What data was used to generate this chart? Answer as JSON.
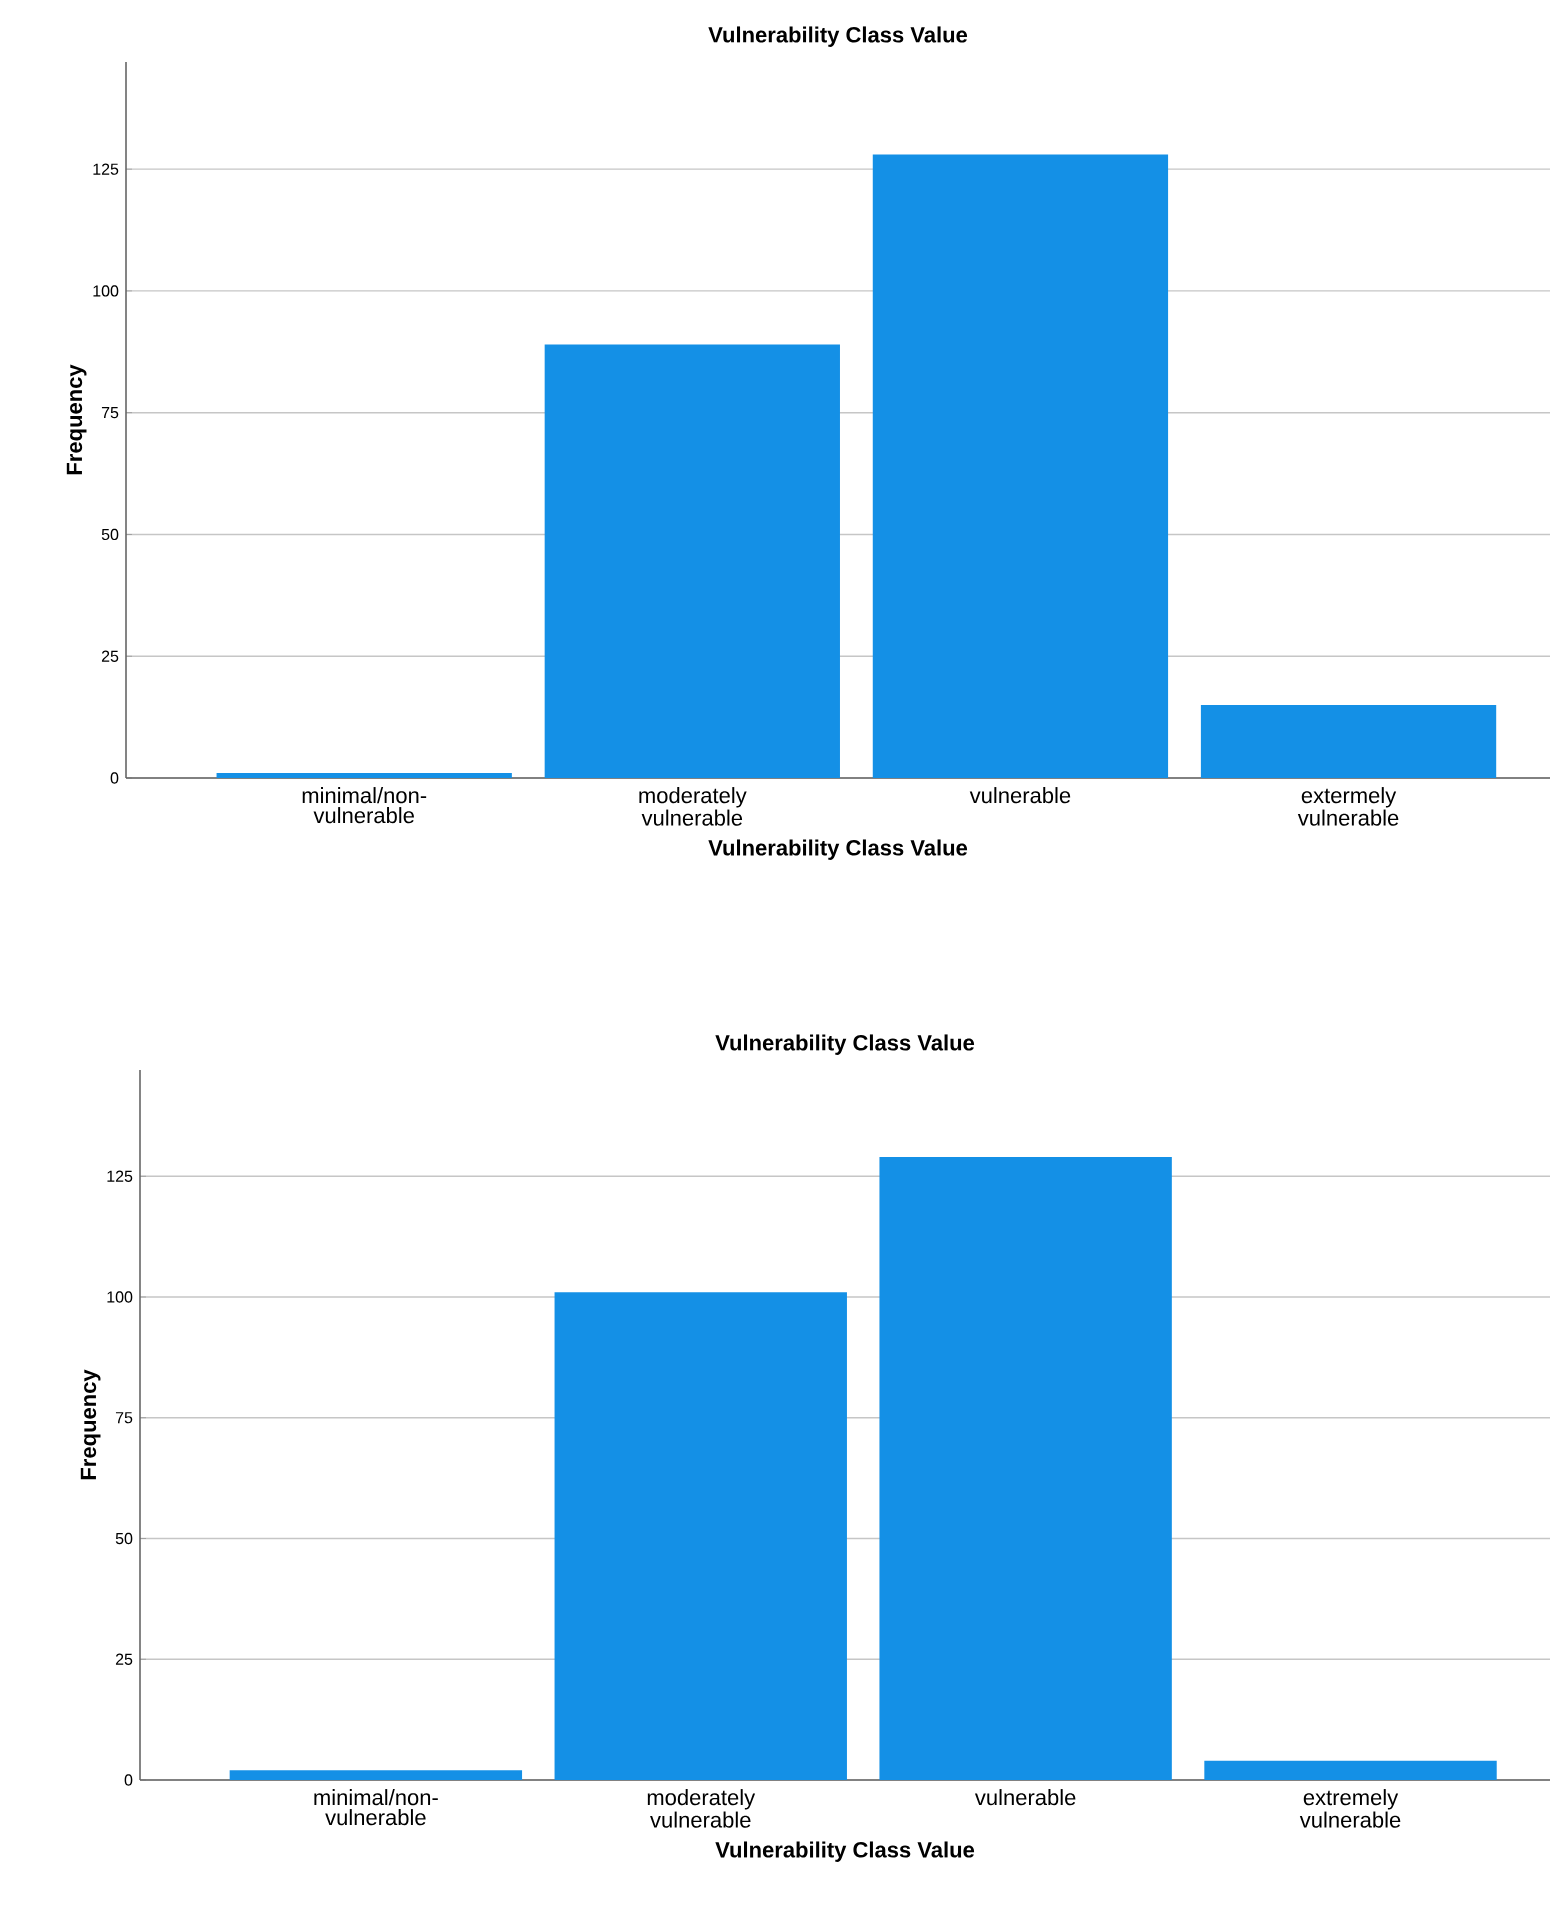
{
  "chart_data": [
    {
      "type": "bar",
      "title": "Vulnerability Class Value",
      "xlabel": "Vulnerability Class Value",
      "ylabel": "Frequency",
      "categories": [
        "minimal/non-vulnerable",
        "moderately vulnerable",
        "vulnerable",
        "extermely vulnerable"
      ],
      "values": [
        1,
        89,
        128,
        15
      ],
      "color": "#1490e6",
      "ylim": [
        0,
        147
      ],
      "yticks": [
        0,
        25,
        50,
        75,
        100,
        125
      ],
      "grid": "y"
    },
    {
      "type": "bar",
      "title": "Vulnerability Class Value",
      "xlabel": "Vulnerability Class Value",
      "ylabel": "Frequency",
      "categories": [
        "minimal/non-vulnerable",
        "moderately vulnerable",
        "vulnerable",
        "extremely vulnerable"
      ],
      "values": [
        2,
        101,
        129,
        4
      ],
      "color": "#1490e6",
      "ylim": [
        0,
        147
      ],
      "yticks": [
        0,
        25,
        50,
        75,
        100,
        125
      ],
      "grid": "y"
    }
  ]
}
